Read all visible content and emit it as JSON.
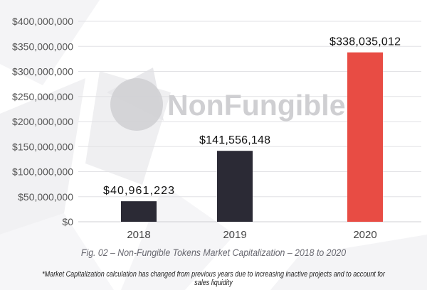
{
  "chart_data": {
    "type": "bar",
    "title": "Fig. 02 – Non-Fungible Tokens Market Capitalization – 2018 to 2020",
    "categories": [
      "2018",
      "2019",
      "2020"
    ],
    "values": [
      40961223,
      141556148,
      338035012
    ],
    "data_labels": [
      "$40,961,223",
      "$141,556,148",
      "$338,035,012"
    ],
    "colors": [
      "#2b2a35",
      "#2b2a35",
      "#e84c44"
    ],
    "ylim": [
      0,
      400000000
    ],
    "yticks": [
      0,
      50000000,
      100000000,
      150000000,
      200000000,
      250000000,
      300000000,
      350000000,
      400000000
    ],
    "ytick_labels": [
      "$0",
      "$50,000,000",
      "$100,000,000",
      "$150,000,000",
      "$200,000,000",
      "$250,000,000",
      "$300,000,000",
      "$350,000,000",
      "$400,000,000"
    ],
    "xlabel": "",
    "ylabel": "",
    "grid": true,
    "footnote": "*Market Capitalization calculation has changed from previous years due to increasing inactive projects and to account for sales liquidity"
  },
  "watermark": "NonFungible"
}
